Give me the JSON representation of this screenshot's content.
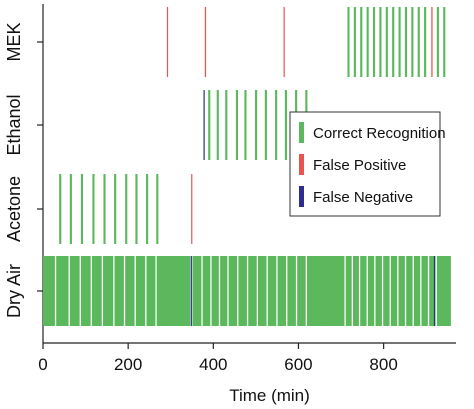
{
  "chart_data": {
    "type": "event-timeline",
    "xlabel": "Time (min)",
    "ylabel": "",
    "xlim": [
      0,
      970
    ],
    "x_ticks": [
      0,
      200,
      400,
      600,
      800
    ],
    "x_tick_labels": [
      "0",
      "200",
      "400",
      "600",
      "800"
    ],
    "categories": [
      "Dry Air",
      "Acetone",
      "Ethanol",
      "MEK"
    ],
    "legend": {
      "placement": "right",
      "entries": [
        {
          "name": "Correct Recognition",
          "color": "#5cb85c"
        },
        {
          "name": "False Positive",
          "color": "#e8554e"
        },
        {
          "name": "False Negative",
          "color": "#2c2f8f"
        }
      ]
    },
    "series": [
      {
        "name": "Correct Recognition",
        "color": "#5cb85c",
        "events": [
          {
            "category": "MEK",
            "start": 715,
            "end": 720
          },
          {
            "category": "MEK",
            "start": 730,
            "end": 735
          },
          {
            "category": "MEK",
            "start": 745,
            "end": 750
          },
          {
            "category": "MEK",
            "start": 760,
            "end": 765
          },
          {
            "category": "MEK",
            "start": 775,
            "end": 780
          },
          {
            "category": "MEK",
            "start": 790,
            "end": 795
          },
          {
            "category": "MEK",
            "start": 805,
            "end": 810
          },
          {
            "category": "MEK",
            "start": 820,
            "end": 825
          },
          {
            "category": "MEK",
            "start": 835,
            "end": 840
          },
          {
            "category": "MEK",
            "start": 850,
            "end": 855
          },
          {
            "category": "MEK",
            "start": 865,
            "end": 870
          },
          {
            "category": "MEK",
            "start": 880,
            "end": 885
          },
          {
            "category": "MEK",
            "start": 895,
            "end": 900
          },
          {
            "category": "MEK",
            "start": 925,
            "end": 930
          },
          {
            "category": "MEK",
            "start": 940,
            "end": 945
          },
          {
            "category": "Ethanol",
            "start": 388,
            "end": 393
          },
          {
            "category": "Ethanol",
            "start": 408,
            "end": 413
          },
          {
            "category": "Ethanol",
            "start": 428,
            "end": 433
          },
          {
            "category": "Ethanol",
            "start": 453,
            "end": 458
          },
          {
            "category": "Ethanol",
            "start": 473,
            "end": 478
          },
          {
            "category": "Ethanol",
            "start": 498,
            "end": 503
          },
          {
            "category": "Ethanol",
            "start": 521,
            "end": 526
          },
          {
            "category": "Ethanol",
            "start": 545,
            "end": 550
          },
          {
            "category": "Ethanol",
            "start": 568,
            "end": 573
          },
          {
            "category": "Ethanol",
            "start": 592,
            "end": 597
          },
          {
            "category": "Ethanol",
            "start": 616,
            "end": 621
          },
          {
            "category": "Acetone",
            "start": 38,
            "end": 43
          },
          {
            "category": "Acetone",
            "start": 63,
            "end": 68
          },
          {
            "category": "Acetone",
            "start": 89,
            "end": 94
          },
          {
            "category": "Acetone",
            "start": 116,
            "end": 121
          },
          {
            "category": "Acetone",
            "start": 142,
            "end": 147
          },
          {
            "category": "Acetone",
            "start": 167,
            "end": 172
          },
          {
            "category": "Acetone",
            "start": 193,
            "end": 198
          },
          {
            "category": "Acetone",
            "start": 217,
            "end": 222
          },
          {
            "category": "Acetone",
            "start": 242,
            "end": 247
          },
          {
            "category": "Acetone",
            "start": 266,
            "end": 271
          },
          {
            "category": "Dry Air",
            "start": 0,
            "end": 28
          },
          {
            "category": "Dry Air",
            "start": 31,
            "end": 60
          },
          {
            "category": "Dry Air",
            "start": 63,
            "end": 86
          },
          {
            "category": "Dry Air",
            "start": 89,
            "end": 112
          },
          {
            "category": "Dry Air",
            "start": 115,
            "end": 138
          },
          {
            "category": "Dry Air",
            "start": 141,
            "end": 165
          },
          {
            "category": "Dry Air",
            "start": 168,
            "end": 190
          },
          {
            "category": "Dry Air",
            "start": 193,
            "end": 215
          },
          {
            "category": "Dry Air",
            "start": 218,
            "end": 240
          },
          {
            "category": "Dry Air",
            "start": 243,
            "end": 264
          },
          {
            "category": "Dry Air",
            "start": 267,
            "end": 346
          },
          {
            "category": "Dry Air",
            "start": 351,
            "end": 372
          },
          {
            "category": "Dry Air",
            "start": 375,
            "end": 393
          },
          {
            "category": "Dry Air",
            "start": 396,
            "end": 413
          },
          {
            "category": "Dry Air",
            "start": 416,
            "end": 433
          },
          {
            "category": "Dry Air",
            "start": 436,
            "end": 456
          },
          {
            "category": "Dry Air",
            "start": 459,
            "end": 479
          },
          {
            "category": "Dry Air",
            "start": 482,
            "end": 502
          },
          {
            "category": "Dry Air",
            "start": 505,
            "end": 525
          },
          {
            "category": "Dry Air",
            "start": 528,
            "end": 548
          },
          {
            "category": "Dry Air",
            "start": 551,
            "end": 571
          },
          {
            "category": "Dry Air",
            "start": 574,
            "end": 594
          },
          {
            "category": "Dry Air",
            "start": 597,
            "end": 617
          },
          {
            "category": "Dry Air",
            "start": 620,
            "end": 708
          },
          {
            "category": "Dry Air",
            "start": 711,
            "end": 725
          },
          {
            "category": "Dry Air",
            "start": 728,
            "end": 742
          },
          {
            "category": "Dry Air",
            "start": 745,
            "end": 760
          },
          {
            "category": "Dry Air",
            "start": 763,
            "end": 778
          },
          {
            "category": "Dry Air",
            "start": 781,
            "end": 796
          },
          {
            "category": "Dry Air",
            "start": 799,
            "end": 814
          },
          {
            "category": "Dry Air",
            "start": 817,
            "end": 832
          },
          {
            "category": "Dry Air",
            "start": 835,
            "end": 850
          },
          {
            "category": "Dry Air",
            "start": 853,
            "end": 868
          },
          {
            "category": "Dry Air",
            "start": 871,
            "end": 886
          },
          {
            "category": "Dry Air",
            "start": 889,
            "end": 904
          },
          {
            "category": "Dry Air",
            "start": 907,
            "end": 922
          },
          {
            "category": "Dry Air",
            "start": 925,
            "end": 958
          }
        ]
      },
      {
        "name": "False Positive",
        "color": "#e8554e",
        "events": [
          {
            "category": "MEK",
            "start": 291,
            "end": 293
          },
          {
            "category": "MEK",
            "start": 380,
            "end": 383
          },
          {
            "category": "MEK",
            "start": 565,
            "end": 567
          },
          {
            "category": "MEK",
            "start": 912,
            "end": 915
          },
          {
            "category": "Acetone",
            "start": 348,
            "end": 350
          }
        ]
      },
      {
        "name": "False Negative",
        "color": "#2c2f8f",
        "events": [
          {
            "category": "Ethanol",
            "start": 377,
            "end": 379
          },
          {
            "category": "Dry Air",
            "start": 347,
            "end": 349
          },
          {
            "category": "Dry Air",
            "start": 918,
            "end": 920
          }
        ]
      }
    ]
  }
}
